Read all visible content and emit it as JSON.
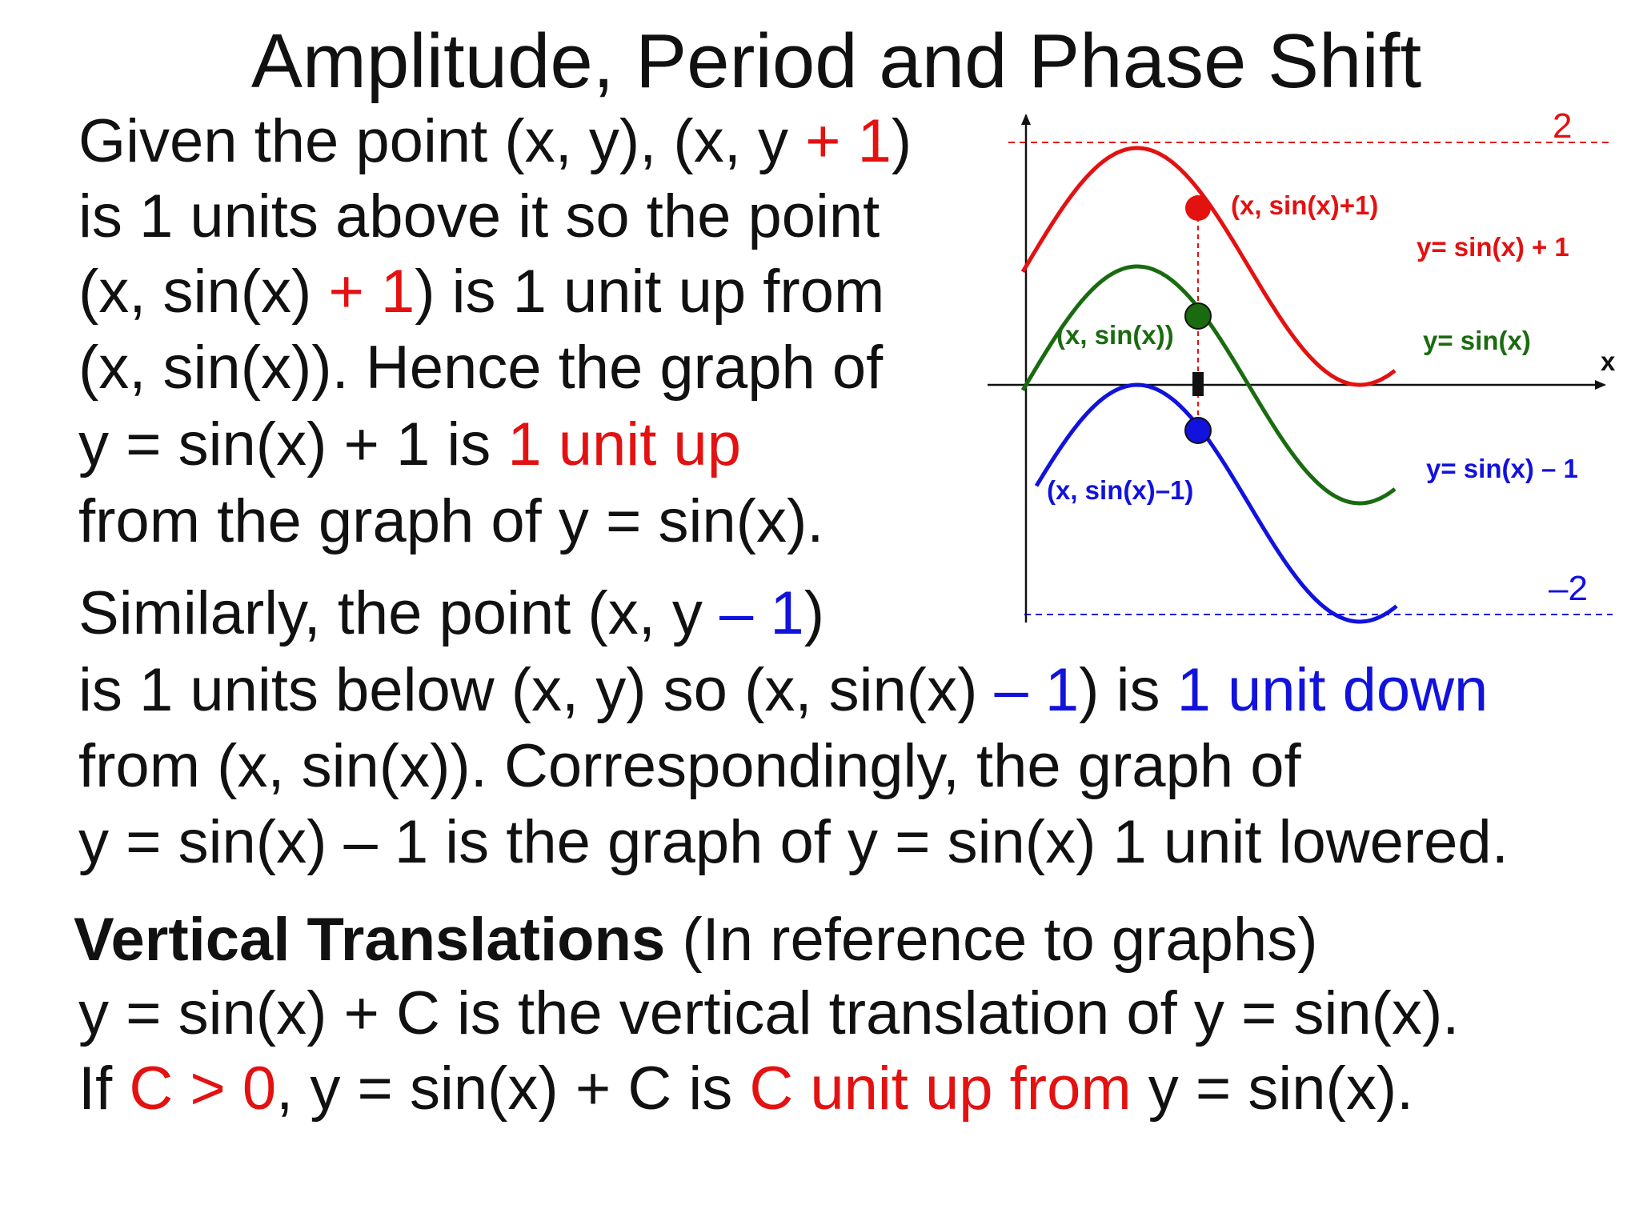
{
  "title": "Amplitude, Period and Phase Shift",
  "para1": {
    "l1": [
      "Given the point (x, y), (x, y ",
      "+ 1",
      ")"
    ],
    "l2": "is 1 units above it so the point",
    "l3": [
      "(x, sin(x) ",
      "+ 1",
      ") is 1 unit up from"
    ],
    "l4": "(x, sin(x)). Hence the graph of",
    "l5": [
      "y = sin(x) + 1 is ",
      "1 unit up"
    ],
    "l6": "from the graph of y = sin(x)."
  },
  "para2": {
    "l1": [
      "Similarly, the point (x, y ",
      "– 1",
      ")"
    ],
    "l2": [
      "is 1 units below (x, y) so (x, sin(x) ",
      "– 1",
      ") is ",
      "1 unit down"
    ],
    "l3": "from (x, sin(x)). Correspondingly, the graph of",
    "l4": "y = sin(x) – 1 is the graph of y = sin(x) 1 unit lowered."
  },
  "section": {
    "heading": "Vertical Translations",
    "heading_note": " (In reference to graphs)",
    "l1": "y = sin(x) + C is the vertical translation of y = sin(x).",
    "l2": [
      "If ",
      "C > 0",
      ", y = sin(x) + C is ",
      "C unit up from",
      " y = sin(x)."
    ]
  },
  "graph": {
    "axis_x_label": "x",
    "top_label": "2",
    "bottom_label": "–2",
    "point_labels": {
      "upper": "(x, sin(x)+1)",
      "middle": "(x, sin(x))",
      "lower": "(x, sin(x)–1)"
    },
    "curve_labels": {
      "upper": "y= sin(x) + 1",
      "middle": "y= sin(x)",
      "lower": "y= sin(x) – 1"
    },
    "colors": {
      "upper": "#e41111",
      "middle": "#1a6b10",
      "lower": "#1212dd",
      "axis": "#111111"
    },
    "vertical_shifts": [
      1,
      0,
      -1
    ],
    "y_range": [
      -2,
      2
    ]
  }
}
